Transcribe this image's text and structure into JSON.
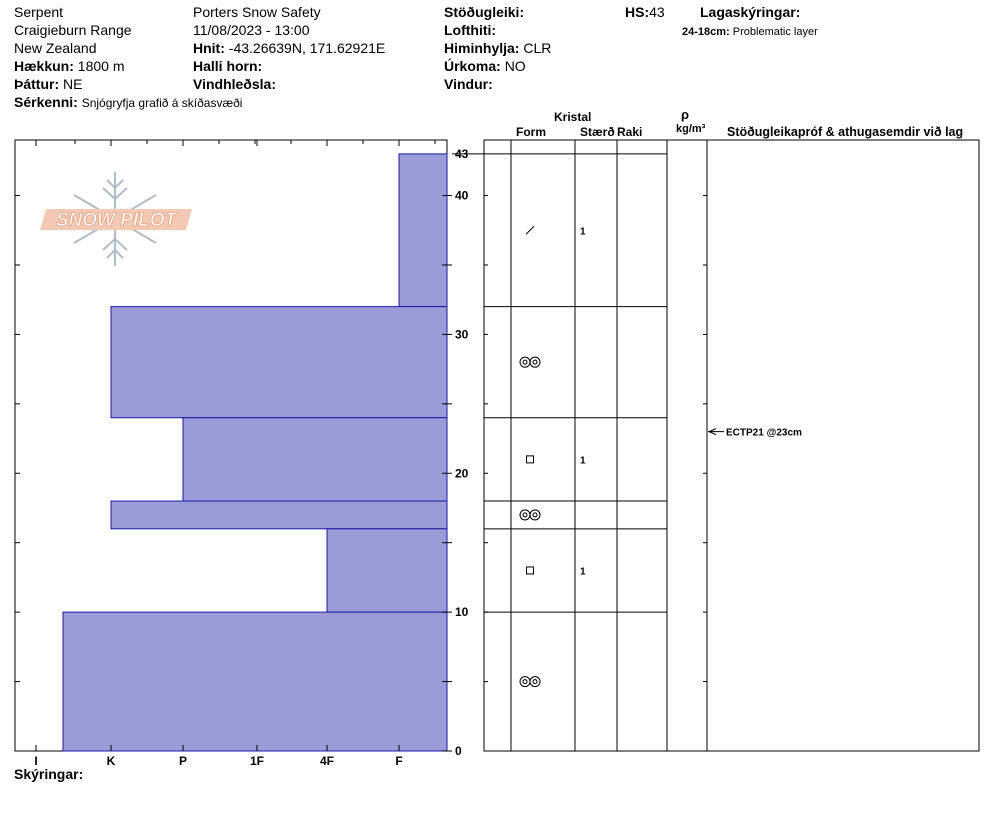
{
  "header": {
    "location": "Serpent",
    "range": "Craigieburn Range",
    "country": "New Zealand",
    "elevation_label": "Hækkun:",
    "elevation_value": "1800 m",
    "aspect_label": "Þáttur:",
    "aspect_value": "NE",
    "features_label": "Sérkenni:",
    "features_value": "Snjógryfja grafið á skíðasvæði",
    "org": "Porters Snow Safety",
    "datetime": "11/08/2023 - 13:00",
    "coords_label": "Hnit:",
    "coords_value": "-43.26639N, 171.62921E",
    "slope_label": "Halli horn:",
    "wind_loading_label": "Vindhleðsla:",
    "stability_label": "Stöðugleiki:",
    "air_temp_label": "Lofthiti:",
    "sky_label": "Himinhylja:",
    "sky_value": "CLR",
    "precip_label": "Úrkoma:",
    "precip_value": "NO",
    "wind_label": "Vindur:",
    "hs_label": "HS:",
    "hs_value": "43",
    "layer_notes_label": "Lagaskýringar:",
    "layer_note_range": "24-18cm:",
    "layer_note_text": "Problematic layer"
  },
  "columns": {
    "crystal": "Kristal",
    "form": "Form",
    "size": "Stærð",
    "moisture": "Raki",
    "rho": "ρ",
    "density_unit": "kg/m³",
    "tests": "Stöðugleikapróf & athugasemdir við lag"
  },
  "footer": {
    "notes_label": "Skýringar:"
  },
  "logo_text": "SNOW PILOT",
  "colors": {
    "hardness_fill": "#9b9bd7",
    "hardness_stroke": "#1a1aa8",
    "logo": "#f0b090",
    "flake": "#b0bcc8"
  },
  "chart_data": {
    "type": "bar",
    "orientation": "horizontal",
    "y_axis": {
      "range": [
        0,
        43
      ],
      "unit": "cm",
      "tick_labels": [
        "0",
        "10",
        "20",
        "30",
        "40",
        "43"
      ]
    },
    "x_axis": {
      "categories": [
        "I",
        "K",
        "P",
        "1F",
        "4F",
        "F"
      ]
    },
    "layers": [
      {
        "top": 43,
        "bottom": 32,
        "hardness": "F",
        "form": "slash",
        "size": "1"
      },
      {
        "top": 32,
        "bottom": 24,
        "hardness": "K",
        "form": "rounded",
        "size": ""
      },
      {
        "top": 24,
        "bottom": 18,
        "hardness": "P",
        "form": "faceted",
        "size": "1"
      },
      {
        "top": 18,
        "bottom": 16,
        "hardness": "K",
        "form": "rounded",
        "size": ""
      },
      {
        "top": 16,
        "bottom": 10,
        "hardness": "4F",
        "form": "faceted",
        "size": "1"
      },
      {
        "top": 10,
        "bottom": 0,
        "hardness": "I",
        "form": "rounded",
        "size": ""
      }
    ],
    "tests": [
      {
        "depth": 23,
        "label": "ECTP21 @23cm"
      }
    ]
  }
}
